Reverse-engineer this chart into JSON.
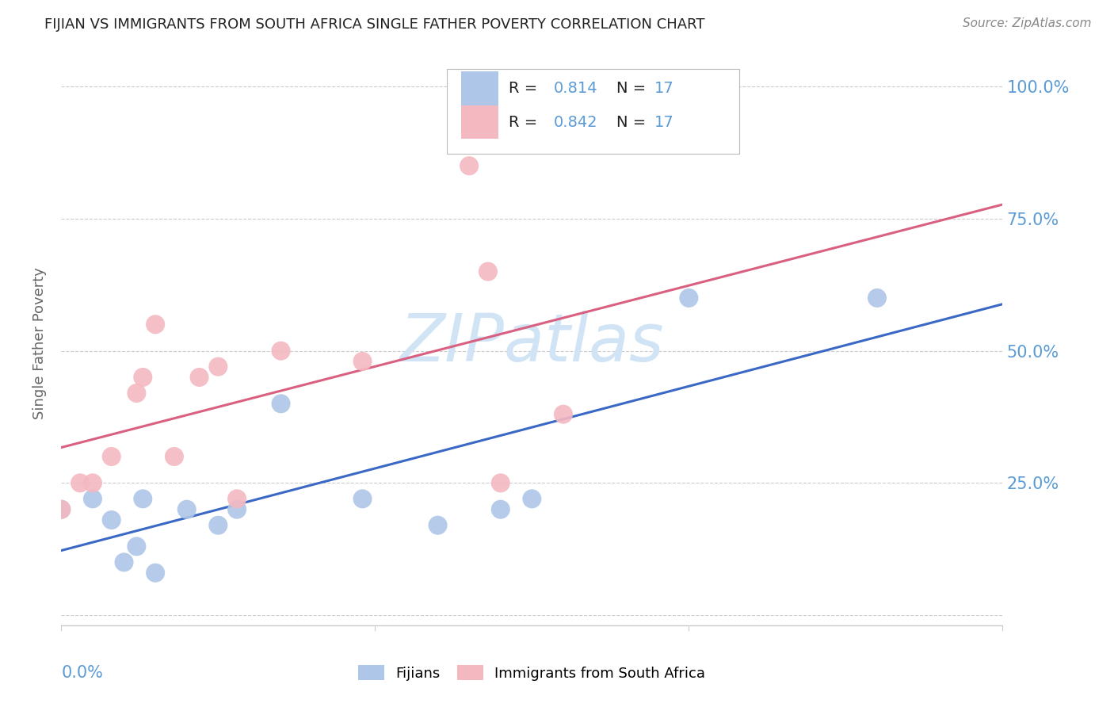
{
  "title": "FIJIAN VS IMMIGRANTS FROM SOUTH AFRICA SINGLE FATHER POVERTY CORRELATION CHART",
  "source": "Source: ZipAtlas.com",
  "ylabel": "Single Father Poverty",
  "legend_r_fijian": "0.814",
  "legend_n_fijian": "17",
  "legend_r_sa": "0.842",
  "legend_n_sa": "17",
  "fijian_color": "#aec6e8",
  "sa_color": "#f4b8c1",
  "fijian_line_color": "#3a68c4",
  "sa_line_color": "#d96080",
  "label_color": "#5b9bd5",
  "watermark_color": "#d0e4f5",
  "fijian_x": [
    0.0,
    0.005,
    0.008,
    0.01,
    0.012,
    0.013,
    0.015,
    0.02,
    0.025,
    0.028,
    0.035,
    0.048,
    0.06,
    0.07,
    0.075,
    0.1,
    0.13
  ],
  "fijian_y": [
    0.2,
    0.22,
    0.18,
    0.1,
    0.13,
    0.22,
    0.08,
    0.2,
    0.17,
    0.2,
    0.4,
    0.22,
    0.17,
    0.2,
    0.22,
    0.6,
    0.6
  ],
  "sa_x": [
    0.0,
    0.003,
    0.005,
    0.008,
    0.012,
    0.013,
    0.015,
    0.018,
    0.022,
    0.025,
    0.028,
    0.035,
    0.048,
    0.065,
    0.068,
    0.07,
    0.08
  ],
  "sa_y": [
    0.2,
    0.25,
    0.25,
    0.3,
    0.42,
    0.45,
    0.55,
    0.3,
    0.45,
    0.47,
    0.22,
    0.5,
    0.48,
    0.85,
    0.65,
    0.25,
    0.38
  ],
  "xlim": [
    0.0,
    0.15
  ],
  "ylim": [
    -0.02,
    1.05
  ],
  "yticks": [
    0.0,
    0.25,
    0.5,
    0.75,
    1.0
  ],
  "ytick_labels": [
    "",
    "25.0%",
    "50.0%",
    "75.0%",
    "100.0%"
  ]
}
